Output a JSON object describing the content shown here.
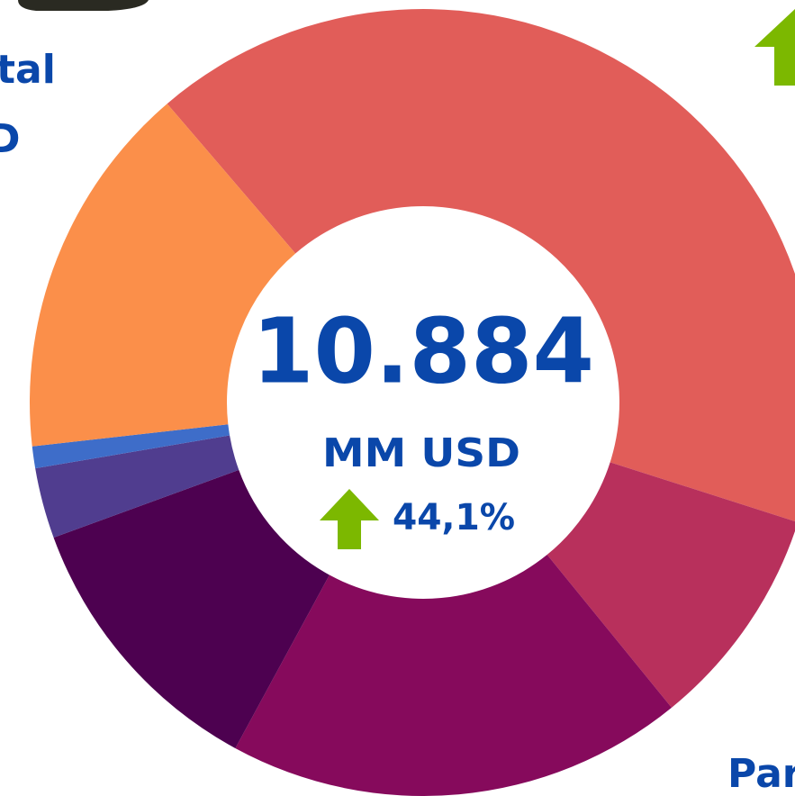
{
  "chart_data": {
    "type": "donut",
    "values": [
      41.2,
      9.2,
      18.8,
      11.5,
      2.9,
      0.9,
      15.5
    ],
    "colors": [
      "#e15d59",
      "#b8305c",
      "#860a5c",
      "#4d0150",
      "#503d8f",
      "#3e6dc9",
      "#fb8f4a"
    ],
    "center_value": "10.884",
    "center_unit": "MM USD",
    "change": "44,1%"
  },
  "side_texts": {
    "top_left_1": "tal",
    "top_left_2": "D",
    "bottom_right": "Par"
  }
}
